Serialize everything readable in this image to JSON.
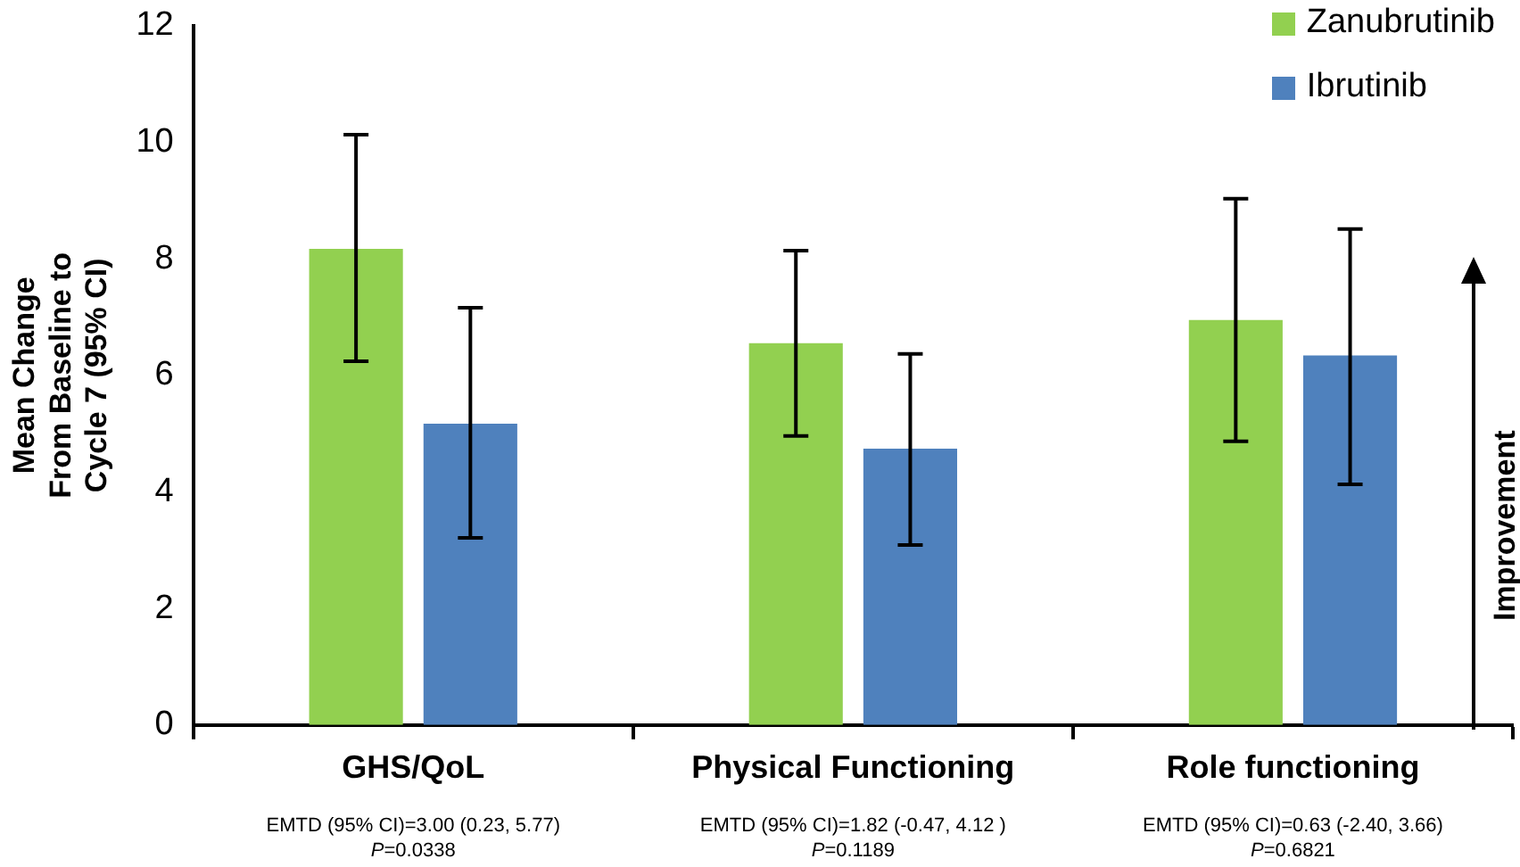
{
  "chart_data": {
    "type": "bar",
    "categories": [
      "GHS/QoL",
      "Physical Functioning",
      "Role functioning"
    ],
    "series": [
      {
        "name": "Zanubrutinib",
        "color": "#92d050",
        "values": [
          8.17,
          6.55,
          6.95
        ],
        "errors": [
          [
            6.24,
            10.13
          ],
          [
            4.96,
            8.14
          ],
          [
            4.87,
            9.03
          ]
        ]
      },
      {
        "name": "Ibrutinib",
        "color": "#4f81bd",
        "values": [
          5.17,
          4.74,
          6.34
        ],
        "errors": [
          [
            3.21,
            7.16
          ],
          [
            3.09,
            6.37
          ],
          [
            4.13,
            8.51
          ]
        ]
      }
    ],
    "ylabel": "Mean Change From Baseline to Cycle 7 (95% CI)",
    "y2label": "Improvement",
    "ylim": [
      0,
      12
    ],
    "yticks": [
      0,
      2,
      4,
      6,
      8,
      10,
      12
    ],
    "grid": false,
    "legend": "top right",
    "annotations": [
      "EMTD (95% CI)=3.00 (0.23, 5.77)\nP=0.0338",
      "EMTD (95% CI)=1.82 (-0.47, 4.12 )\nP=0.1189",
      "EMTD (95% CI)=0.63 (-2.40, 3.66)\nP=0.6821"
    ]
  }
}
